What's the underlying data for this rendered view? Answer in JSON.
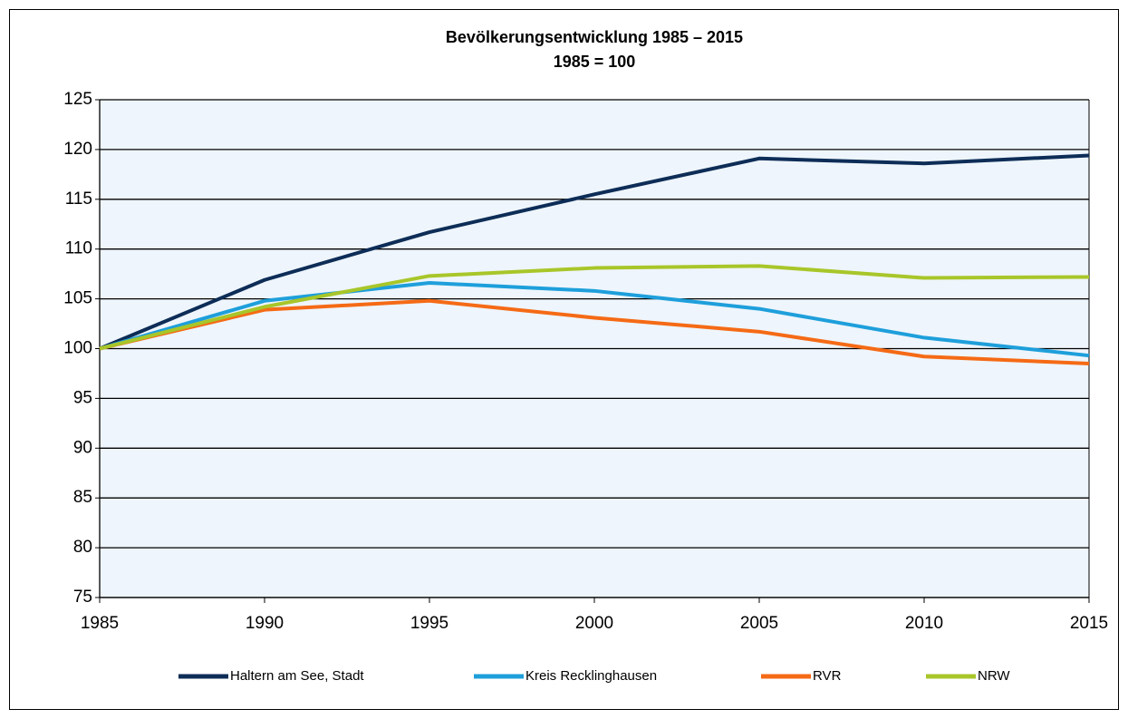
{
  "chart_data": {
    "type": "line",
    "title": "Bevölkerungsentwicklung 1985 – 2015",
    "subtitle": "1985 = 100",
    "x": [
      1985,
      1990,
      1995,
      2000,
      2005,
      2010,
      2015
    ],
    "series": [
      {
        "name": "Haltern am See, Stadt",
        "color": "#0d2d57",
        "values": [
          100,
          106.9,
          111.7,
          115.5,
          119.1,
          118.6,
          119.4
        ]
      },
      {
        "name": "Kreis Recklinghausen",
        "color": "#1e9fdb",
        "values": [
          100,
          104.8,
          106.6,
          105.8,
          104.0,
          101.1,
          99.3
        ]
      },
      {
        "name": "RVR",
        "color": "#f56a15",
        "values": [
          100,
          103.9,
          104.8,
          103.1,
          101.7,
          99.2,
          98.5
        ]
      },
      {
        "name": "NRW",
        "color": "#a8c629",
        "values": [
          100,
          104.2,
          107.3,
          108.1,
          108.3,
          107.1,
          107.2
        ]
      }
    ],
    "xlim": [
      1985,
      2015
    ],
    "xticks": [
      1985,
      1990,
      1995,
      2000,
      2005,
      2010,
      2015
    ],
    "ylim": [
      75,
      125
    ],
    "yticks": [
      75,
      80,
      85,
      90,
      95,
      100,
      105,
      110,
      115,
      120,
      125
    ],
    "grid": true,
    "legend": "bottom"
  }
}
